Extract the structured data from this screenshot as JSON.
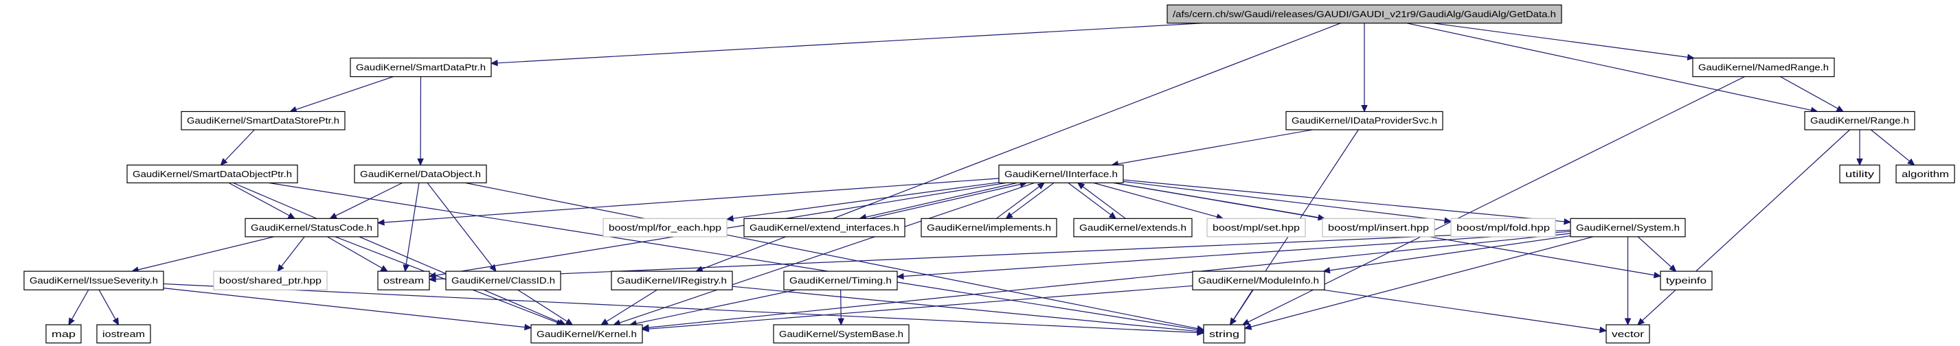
{
  "graph": {
    "edge_color": "#191970",
    "root_fill": "#bfbfbf",
    "nodes": [
      {
        "id": "root",
        "label": "/afs/cern.ch/sw/Gaudi/releases/GAUDI/GAUDI_v21r9/GaudiAlg/GaudiAlg/GetData.h",
        "kind": "root"
      },
      {
        "id": "smartdataptr",
        "label": "GaudiKernel/SmartDataPtr.h",
        "kind": "file"
      },
      {
        "id": "smartdatastoreptr",
        "label": "GaudiKernel/SmartDataStorePtr.h",
        "kind": "file"
      },
      {
        "id": "smartdataobjectptr",
        "label": "GaudiKernel/SmartDataObjectPtr.h",
        "kind": "file"
      },
      {
        "id": "dataobject",
        "label": "GaudiKernel/DataObject.h",
        "kind": "file"
      },
      {
        "id": "statuscode",
        "label": "GaudiKernel/StatusCode.h",
        "kind": "file"
      },
      {
        "id": "issueseverity",
        "label": "GaudiKernel/IssueSeverity.h",
        "kind": "file"
      },
      {
        "id": "sharedptr",
        "label": "boost/shared_ptr.hpp",
        "kind": "external"
      },
      {
        "id": "ostream",
        "label": "ostream",
        "kind": "file"
      },
      {
        "id": "classid",
        "label": "GaudiKernel/ClassID.h",
        "kind": "file"
      },
      {
        "id": "map",
        "label": "map",
        "kind": "file"
      },
      {
        "id": "iostream",
        "label": "iostream",
        "kind": "file"
      },
      {
        "id": "kernel",
        "label": "GaudiKernel/Kernel.h",
        "kind": "file"
      },
      {
        "id": "foreach",
        "label": "boost/mpl/for_each.hpp",
        "kind": "external"
      },
      {
        "id": "iregistry",
        "label": "GaudiKernel/IRegistry.h",
        "kind": "file"
      },
      {
        "id": "iinterface",
        "label": "GaudiKernel/IInterface.h",
        "kind": "file"
      },
      {
        "id": "extendinterfaces",
        "label": "GaudiKernel/extend_interfaces.h",
        "kind": "file"
      },
      {
        "id": "implements",
        "label": "GaudiKernel/implements.h",
        "kind": "file"
      },
      {
        "id": "extends",
        "label": "GaudiKernel/extends.h",
        "kind": "file"
      },
      {
        "id": "mplset",
        "label": "boost/mpl/set.hpp",
        "kind": "external"
      },
      {
        "id": "mplinsert",
        "label": "boost/mpl/insert.hpp",
        "kind": "external"
      },
      {
        "id": "mplfold",
        "label": "boost/mpl/fold.hpp",
        "kind": "external"
      },
      {
        "id": "system",
        "label": "GaudiKernel/System.h",
        "kind": "file"
      },
      {
        "id": "timing",
        "label": "GaudiKernel/Timing.h",
        "kind": "file"
      },
      {
        "id": "moduleinfo",
        "label": "GaudiKernel/ModuleInfo.h",
        "kind": "file"
      },
      {
        "id": "systembase",
        "label": "GaudiKernel/SystemBase.h",
        "kind": "file"
      },
      {
        "id": "string",
        "label": "string",
        "kind": "file"
      },
      {
        "id": "typeinfo",
        "label": "typeinfo",
        "kind": "file"
      },
      {
        "id": "vector",
        "label": "vector",
        "kind": "file"
      },
      {
        "id": "idataprovidersvc",
        "label": "GaudiKernel/IDataProviderSvc.h",
        "kind": "file"
      },
      {
        "id": "namedrange",
        "label": "GaudiKernel/NamedRange.h",
        "kind": "file"
      },
      {
        "id": "range",
        "label": "GaudiKernel/Range.h",
        "kind": "file"
      },
      {
        "id": "utility",
        "label": "utility",
        "kind": "file"
      },
      {
        "id": "algorithm",
        "label": "algorithm",
        "kind": "file"
      }
    ],
    "edges": [
      [
        "root",
        "smartdataptr"
      ],
      [
        "root",
        "iregistry"
      ],
      [
        "root",
        "idataprovidersvc"
      ],
      [
        "root",
        "namedrange"
      ],
      [
        "root",
        "range"
      ],
      [
        "smartdataptr",
        "smartdatastoreptr"
      ],
      [
        "smartdataptr",
        "dataobject"
      ],
      [
        "smartdatastoreptr",
        "smartdataobjectptr"
      ],
      [
        "smartdataobjectptr",
        "statuscode"
      ],
      [
        "smartdataobjectptr",
        "kernel"
      ],
      [
        "smartdataobjectptr",
        "string"
      ],
      [
        "dataobject",
        "statuscode"
      ],
      [
        "dataobject",
        "ostream"
      ],
      [
        "dataobject",
        "classid"
      ],
      [
        "dataobject",
        "string"
      ],
      [
        "statuscode",
        "issueseverity"
      ],
      [
        "statuscode",
        "sharedptr"
      ],
      [
        "statuscode",
        "ostream"
      ],
      [
        "statuscode",
        "kernel"
      ],
      [
        "issueseverity",
        "map"
      ],
      [
        "issueseverity",
        "iostream"
      ],
      [
        "issueseverity",
        "kernel"
      ],
      [
        "issueseverity",
        "string"
      ],
      [
        "classid",
        "kernel"
      ],
      [
        "iregistry",
        "kernel"
      ],
      [
        "iregistry",
        "string"
      ],
      [
        "idataprovidersvc",
        "iinterface"
      ],
      [
        "idataprovidersvc",
        "string"
      ],
      [
        "iinterface",
        "statuscode"
      ],
      [
        "iinterface",
        "ostream"
      ],
      [
        "iinterface",
        "kernel"
      ],
      [
        "iinterface",
        "foreach"
      ],
      [
        "iinterface",
        "extendinterfaces"
      ],
      [
        "iinterface",
        "implements"
      ],
      [
        "iinterface",
        "extends"
      ],
      [
        "iinterface",
        "mplset"
      ],
      [
        "iinterface",
        "mplinsert"
      ],
      [
        "iinterface",
        "mplfold"
      ],
      [
        "iinterface",
        "system"
      ],
      [
        "iinterface",
        "typeinfo"
      ],
      [
        "extendinterfaces",
        "iinterface"
      ],
      [
        "implements",
        "iinterface"
      ],
      [
        "extends",
        "iinterface"
      ],
      [
        "system",
        "kernel"
      ],
      [
        "system",
        "timing"
      ],
      [
        "system",
        "moduleinfo"
      ],
      [
        "system",
        "typeinfo"
      ],
      [
        "system",
        "vector"
      ],
      [
        "system",
        "string"
      ],
      [
        "system",
        "ostream"
      ],
      [
        "timing",
        "systembase"
      ],
      [
        "timing",
        "kernel"
      ],
      [
        "moduleinfo",
        "string"
      ],
      [
        "moduleinfo",
        "vector"
      ],
      [
        "moduleinfo",
        "kernel"
      ],
      [
        "namedrange",
        "range"
      ],
      [
        "namedrange",
        "string"
      ],
      [
        "range",
        "utility"
      ],
      [
        "range",
        "algorithm"
      ],
      [
        "range",
        "vector"
      ]
    ]
  }
}
